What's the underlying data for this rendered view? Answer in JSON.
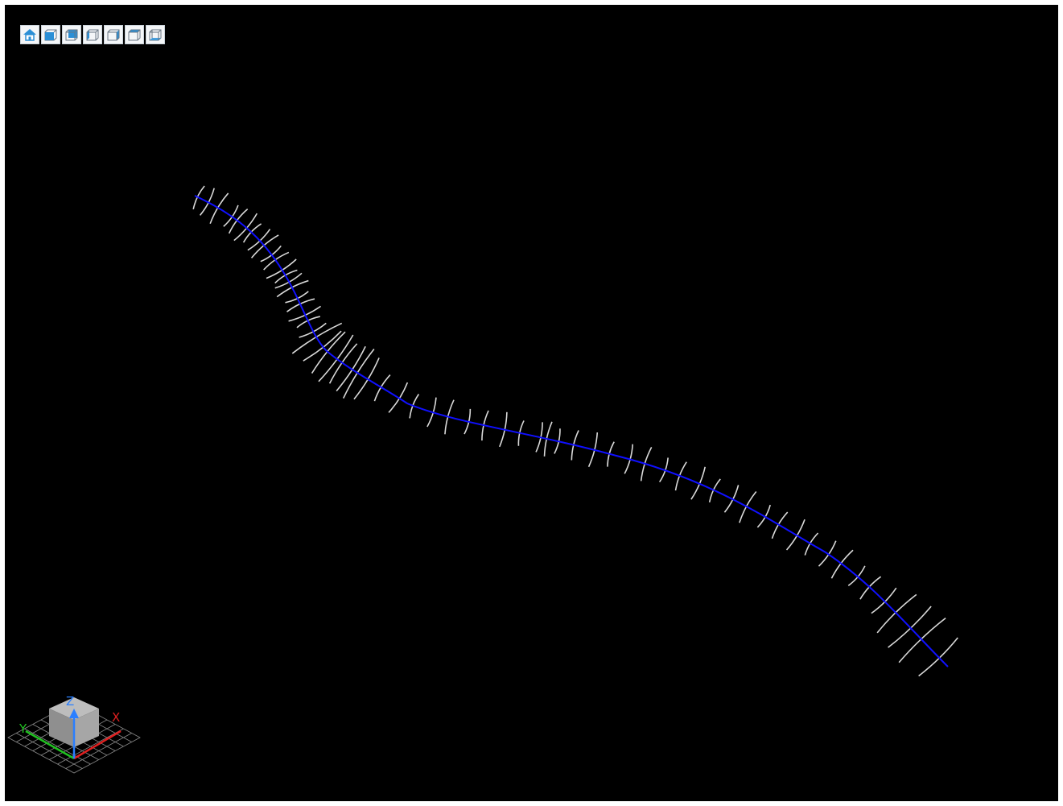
{
  "viewer": {
    "background": "#000000",
    "centerline_color": "#1010ff",
    "section_color": "#d9d9d9",
    "toolbar": [
      {
        "name": "home-view-button",
        "icon": "home-icon"
      },
      {
        "name": "front-view-button",
        "icon": "cube-front-icon"
      },
      {
        "name": "back-view-button",
        "icon": "cube-back-icon"
      },
      {
        "name": "left-view-button",
        "icon": "cube-left-icon"
      },
      {
        "name": "right-view-button",
        "icon": "cube-right-icon"
      },
      {
        "name": "top-view-button",
        "icon": "cube-top-icon"
      },
      {
        "name": "bottom-view-button",
        "icon": "cube-bottom-icon"
      }
    ]
  },
  "axes": {
    "x_label": "X",
    "y_label": "Y",
    "z_label": "Z",
    "x_color": "#e02020",
    "y_color": "#20c020",
    "z_color": "#2a7fff"
  }
}
